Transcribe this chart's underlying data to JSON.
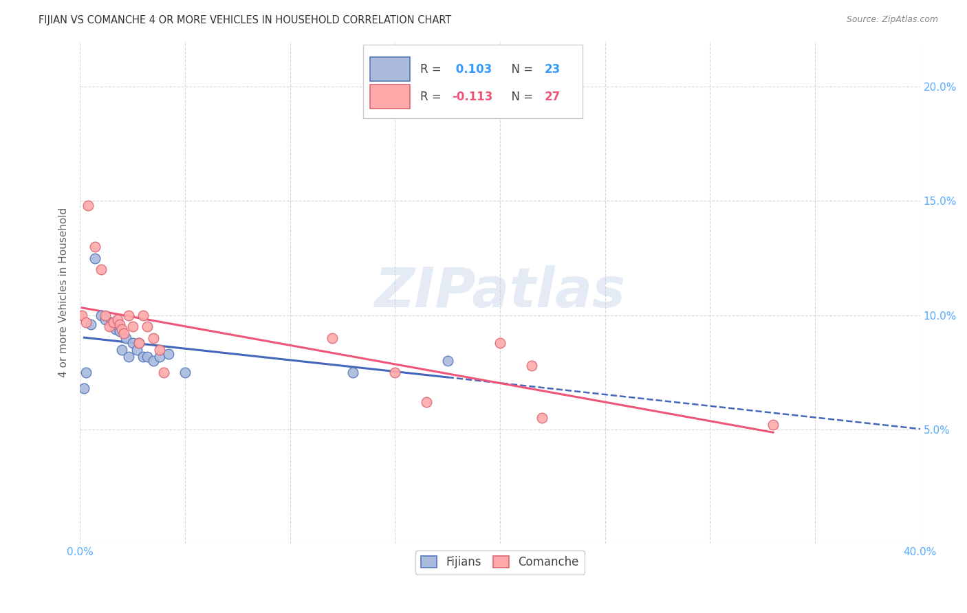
{
  "title": "FIJIAN VS COMANCHE 4 OR MORE VEHICLES IN HOUSEHOLD CORRELATION CHART",
  "source": "Source: ZipAtlas.com",
  "ylabel": "4 or more Vehicles in Household",
  "xlim": [
    0.0,
    0.4
  ],
  "ylim": [
    0.0,
    0.22
  ],
  "xtick_positions": [
    0.0,
    0.05,
    0.1,
    0.15,
    0.2,
    0.25,
    0.3,
    0.35,
    0.4
  ],
  "xtick_labels": [
    "0.0%",
    "",
    "",
    "",
    "",
    "",
    "",
    "",
    "40.0%"
  ],
  "ytick_positions": [
    0.0,
    0.05,
    0.1,
    0.15,
    0.2
  ],
  "ytick_labels": [
    "",
    "5.0%",
    "10.0%",
    "15.0%",
    "20.0%"
  ],
  "fijians_x": [
    0.002,
    0.003,
    0.005,
    0.007,
    0.01,
    0.012,
    0.015,
    0.017,
    0.019,
    0.02,
    0.022,
    0.023,
    0.025,
    0.027,
    0.028,
    0.03,
    0.032,
    0.035,
    0.038,
    0.042,
    0.05,
    0.13,
    0.175
  ],
  "fijians_y": [
    0.068,
    0.075,
    0.096,
    0.125,
    0.1,
    0.098,
    0.097,
    0.094,
    0.093,
    0.085,
    0.09,
    0.082,
    0.088,
    0.085,
    0.088,
    0.082,
    0.082,
    0.08,
    0.082,
    0.083,
    0.075,
    0.075,
    0.08
  ],
  "comanche_x": [
    0.001,
    0.003,
    0.004,
    0.007,
    0.01,
    0.012,
    0.014,
    0.016,
    0.018,
    0.019,
    0.02,
    0.021,
    0.023,
    0.025,
    0.028,
    0.03,
    0.032,
    0.035,
    0.038,
    0.04,
    0.12,
    0.15,
    0.165,
    0.2,
    0.215,
    0.22,
    0.33
  ],
  "comanche_y": [
    0.1,
    0.097,
    0.148,
    0.13,
    0.12,
    0.1,
    0.095,
    0.097,
    0.098,
    0.096,
    0.094,
    0.092,
    0.1,
    0.095,
    0.088,
    0.1,
    0.095,
    0.09,
    0.085,
    0.075,
    0.09,
    0.075,
    0.062,
    0.088,
    0.078,
    0.055,
    0.052
  ],
  "fijians_R": 0.103,
  "fijians_N": 23,
  "comanche_R": -0.113,
  "comanche_N": 27,
  "blue_fill": "#AABBDD",
  "blue_edge": "#5577BB",
  "pink_fill": "#FFAAAA",
  "pink_edge": "#DD6677",
  "blue_line": "#4466BB",
  "pink_line": "#EE5577",
  "watermark": "ZIPatlas",
  "background_color": "#ffffff",
  "grid_color": "#cccccc",
  "tick_color": "#55AAFF",
  "title_color": "#333333",
  "source_color": "#888888",
  "ylabel_color": "#666666"
}
